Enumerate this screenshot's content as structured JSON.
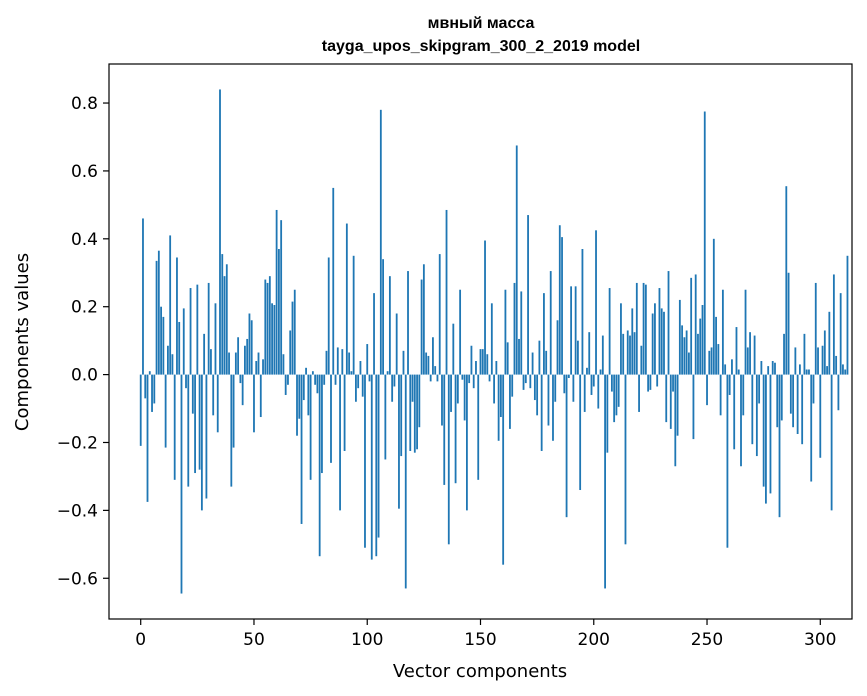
{
  "chart_data": {
    "type": "bar",
    "title_lines": [
      "мвный масса",
      "tayga_upos_skipgram_300_2_2019 model"
    ],
    "xlabel": "Vector components",
    "ylabel": "Components values",
    "xlim": [
      -14,
      314
    ],
    "ylim": [
      -0.72,
      0.915
    ],
    "x_ticks": [
      0,
      50,
      100,
      150,
      200,
      250,
      300
    ],
    "x_tick_labels": [
      "0",
      "50",
      "100",
      "150",
      "200",
      "250",
      "300"
    ],
    "y_ticks": [
      -0.6,
      -0.4,
      -0.2,
      0.0,
      0.2,
      0.4,
      0.6,
      0.8
    ],
    "y_tick_labels": [
      "−0.6",
      "−0.4",
      "−0.2",
      "0.0",
      "0.2",
      "0.4",
      "0.6",
      "0.8"
    ],
    "bar_color": "#1f77b4",
    "grid": false,
    "series": [
      {
        "name": "мвный масса",
        "values": [
          -0.21,
          0.46,
          -0.07,
          -0.375,
          0.01,
          -0.11,
          -0.085,
          0.335,
          0.365,
          0.2,
          0.17,
          -0.215,
          0.085,
          0.41,
          0.06,
          -0.31,
          0.345,
          0.155,
          -0.645,
          0.195,
          -0.04,
          -0.33,
          0.255,
          -0.115,
          -0.29,
          0.265,
          -0.28,
          -0.4,
          0.12,
          -0.365,
          0.27,
          0.075,
          -0.12,
          0.21,
          -0.17,
          0.84,
          0.355,
          0.29,
          0.325,
          0.065,
          -0.33,
          -0.215,
          0.065,
          0.11,
          -0.025,
          -0.09,
          0.085,
          0.105,
          0.18,
          0.16,
          -0.17,
          0.04,
          0.065,
          -0.125,
          0.045,
          0.28,
          0.27,
          0.29,
          0.21,
          0.205,
          0.485,
          0.37,
          0.455,
          0.06,
          -0.06,
          -0.03,
          0.13,
          0.215,
          0.25,
          -0.18,
          -0.13,
          -0.44,
          -0.075,
          0.02,
          -0.12,
          -0.31,
          0.01,
          -0.03,
          -0.055,
          -0.535,
          -0.29,
          -0.03,
          0.07,
          0.345,
          -0.26,
          0.55,
          -0.03,
          0.08,
          -0.4,
          0.075,
          -0.225,
          0.445,
          0.065,
          0.01,
          0.35,
          -0.08,
          -0.04,
          0.04,
          -0.065,
          -0.51,
          0.09,
          -0.02,
          -0.545,
          0.24,
          -0.535,
          -0.48,
          0.78,
          0.34,
          -0.25,
          0.01,
          0.29,
          -0.08,
          -0.035,
          0.18,
          -0.395,
          -0.24,
          0.07,
          -0.63,
          0.305,
          -0.225,
          -0.08,
          -0.23,
          -0.22,
          -0.155,
          0.28,
          0.325,
          0.065,
          0.055,
          -0.02,
          0.11,
          0.025,
          -0.02,
          0.355,
          -0.15,
          -0.325,
          0.485,
          -0.5,
          -0.11,
          0.15,
          -0.32,
          -0.085,
          0.25,
          -0.015,
          -0.135,
          -0.4,
          -0.025,
          0.085,
          -0.04,
          0.04,
          -0.31,
          0.075,
          0.075,
          0.395,
          0.06,
          -0.02,
          0.21,
          -0.085,
          0.04,
          -0.195,
          -0.125,
          -0.56,
          0.25,
          0.095,
          -0.16,
          -0.065,
          0.27,
          0.675,
          0.105,
          0.245,
          -0.045,
          -0.025,
          0.47,
          -0.04,
          0.065,
          -0.075,
          -0.12,
          0.1,
          -0.225,
          0.24,
          0.07,
          -0.15,
          0.305,
          -0.195,
          -0.08,
          0.16,
          0.44,
          0.405,
          -0.055,
          -0.42,
          -0.01,
          0.26,
          -0.08,
          0.26,
          0.1,
          -0.34,
          0.37,
          -0.11,
          0.02,
          0.125,
          -0.06,
          -0.035,
          0.425,
          -0.1,
          0.015,
          0.115,
          -0.63,
          -0.23,
          0.255,
          -0.05,
          -0.14,
          -0.12,
          -0.095,
          0.21,
          0.12,
          -0.5,
          0.13,
          0.115,
          0.195,
          0.125,
          0.27,
          -0.11,
          0.085,
          0.27,
          0.265,
          -0.05,
          -0.045,
          0.18,
          0.21,
          -0.035,
          0.255,
          0.195,
          0.185,
          -0.14,
          0.305,
          -0.16,
          -0.05,
          -0.27,
          -0.18,
          0.22,
          0.145,
          0.11,
          0.13,
          0.065,
          0.285,
          -0.19,
          0.295,
          0.12,
          0.165,
          0.205,
          0.775,
          -0.09,
          0.07,
          0.08,
          0.4,
          0.17,
          0.09,
          -0.12,
          0.25,
          0.03,
          -0.51,
          -0.06,
          0.045,
          -0.22,
          0.14,
          0.015,
          -0.27,
          -0.12,
          0.25,
          0.08,
          0.125,
          -0.205,
          0.115,
          -0.24,
          -0.085,
          0.04,
          -0.33,
          -0.38,
          0.025,
          -0.35,
          0.04,
          0.035,
          -0.155,
          -0.42,
          -0.135,
          0.12,
          0.555,
          0.3,
          -0.115,
          -0.155,
          0.08,
          -0.175,
          0.03,
          -0.205,
          0.12,
          0.015,
          0.015,
          -0.315,
          -0.085,
          0.27,
          0.08,
          -0.245,
          0.085,
          0.13,
          0.025,
          0.185,
          -0.4,
          0.295,
          0.055,
          -0.105,
          0.24,
          0.03,
          0.015,
          0.35
        ]
      }
    ]
  }
}
